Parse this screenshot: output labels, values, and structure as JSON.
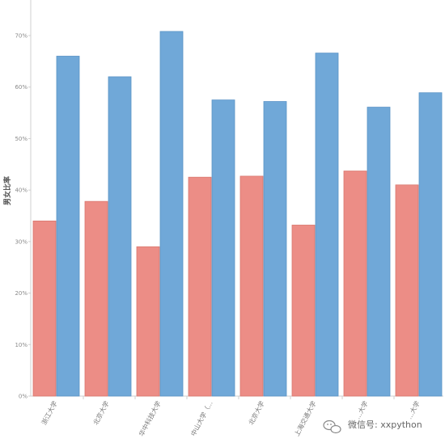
{
  "chart_data": {
    "type": "bar",
    "title": "",
    "xlabel": "",
    "ylabel": "男女比率",
    "ylim": [
      0,
      70
    ],
    "y_ticks": [
      "0%",
      "10%",
      "20%",
      "30%",
      "40%",
      "50%",
      "60%",
      "70%"
    ],
    "categories": [
      "浙江大学",
      "北京大学",
      "华中科技大学",
      "中山大学（...",
      "北京大学",
      "上海交通大学",
      "…大学",
      "…大学"
    ],
    "series": [
      {
        "color": "#ec8d86",
        "values": [
          34,
          37.8,
          29,
          42.5,
          42.7,
          33.2,
          43.7,
          41
        ]
      },
      {
        "color": "#70a8d8",
        "values": [
          66,
          62,
          70.8,
          57.5,
          57.2,
          66.6,
          56.1,
          58.9
        ]
      }
    ],
    "grid": false,
    "legend": "none"
  },
  "watermark": {
    "text": "微信号: xxpython",
    "icon": "wechat-icon"
  }
}
